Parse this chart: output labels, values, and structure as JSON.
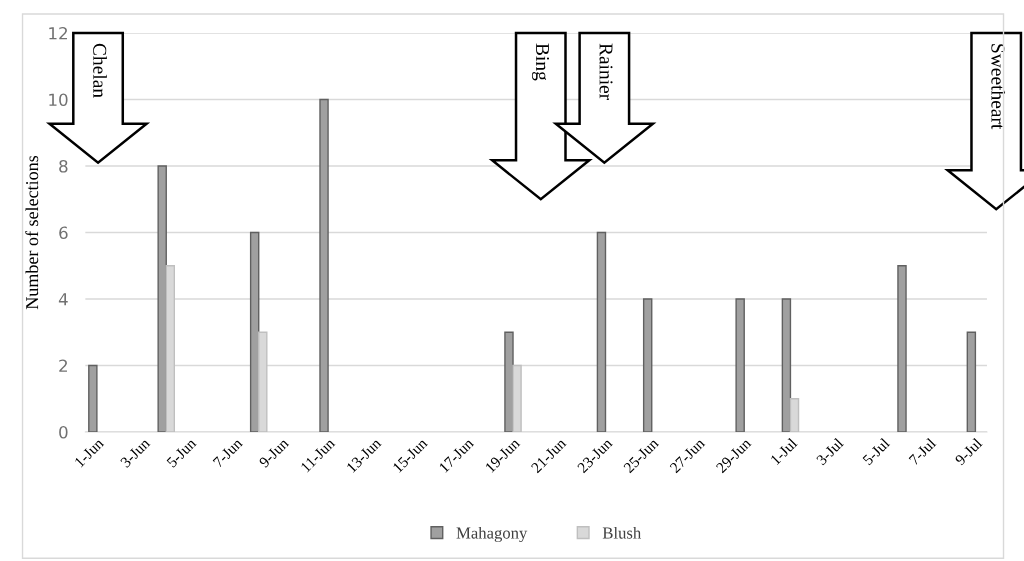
{
  "chart_data": {
    "type": "bar",
    "ylabel": "Number of selections",
    "categories": [
      "1-Jun",
      null,
      "3-Jun",
      null,
      "5-Jun",
      null,
      "7-Jun",
      null,
      "9-Jun",
      null,
      "11-Jun",
      null,
      "13-Jun",
      null,
      "15-Jun",
      null,
      "17-Jun",
      null,
      "19-Jun",
      null,
      "21-Jun",
      null,
      "23-Jun",
      null,
      "25-Jun",
      null,
      "27-Jun",
      null,
      "29-Jun",
      null,
      "1-Jul",
      null,
      "3-Jul",
      null,
      "5-Jul",
      null,
      "7-Jul",
      null,
      "9-Jul"
    ],
    "series": [
      {
        "name": "Mahagony",
        "color": "#a0a0a0",
        "values": [
          2,
          null,
          null,
          8,
          null,
          null,
          null,
          6,
          null,
          null,
          10,
          null,
          null,
          null,
          null,
          null,
          null,
          null,
          3,
          null,
          null,
          null,
          6,
          null,
          4,
          null,
          null,
          null,
          4,
          null,
          4,
          null,
          null,
          null,
          null,
          5,
          null,
          null,
          3
        ]
      },
      {
        "name": "Blush",
        "color": "#d9d9d9",
        "values": [
          null,
          null,
          null,
          5,
          null,
          null,
          null,
          3,
          null,
          null,
          null,
          null,
          null,
          null,
          null,
          null,
          null,
          null,
          2,
          null,
          null,
          null,
          null,
          null,
          null,
          null,
          null,
          null,
          null,
          null,
          1,
          null,
          null,
          null,
          null,
          null,
          null,
          null,
          null
        ]
      }
    ],
    "ylim": [
      0,
      12
    ],
    "yticks": [
      0,
      2,
      4,
      6,
      8,
      10,
      12
    ],
    "grid": "y",
    "legend": "bottom",
    "annotations": [
      "Chelan",
      "Bing",
      "Rainier",
      "Sweetheart"
    ]
  }
}
